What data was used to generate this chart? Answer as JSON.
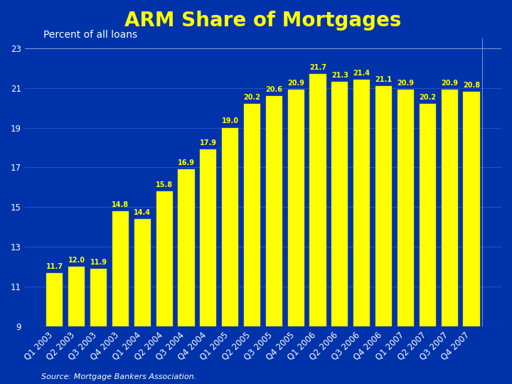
{
  "title": "ARM Share of Mortgages",
  "ylabel": "Percent of all loans",
  "source": "Source: Mortgage Bankers Association.",
  "categories": [
    "Q1 2003",
    "Q2 2003",
    "Q3 2003",
    "Q4 2003",
    "Q1 2004",
    "Q2 2004",
    "Q3 2004",
    "Q4 2004",
    "Q1 2005",
    "Q2 2005",
    "Q3 2005",
    "Q4 2005",
    "Q1 2006",
    "Q2 2006",
    "Q3 2006",
    "Q4 2006",
    "Q1 2007",
    "Q2 2007",
    "Q3 2007",
    "Q4 2007"
  ],
  "values": [
    11.7,
    12.0,
    11.9,
    14.8,
    14.4,
    15.8,
    16.9,
    17.9,
    19.0,
    20.2,
    20.6,
    20.9,
    21.7,
    21.3,
    21.4,
    21.1,
    20.9,
    20.2,
    20.9,
    20.8
  ],
  "bar_color": "#FFFF00",
  "bar_edge_color": "#CCCC00",
  "outer_bg_color": "#0033aa",
  "plot_bg_color": "#0033aa",
  "title_color": "#FFFF00",
  "ylabel_color": "#FFFFFF",
  "tick_color": "#FFFFFF",
  "label_color": "#FFFF00",
  "source_color": "#FFFFFF",
  "grid_color": "#3355cc",
  "ylim_min": 9,
  "ylim_max": 23,
  "yticks": [
    9,
    11,
    13,
    15,
    17,
    19,
    21,
    23
  ],
  "title_fontsize": 20,
  "ylabel_fontsize": 10,
  "bar_label_fontsize": 7,
  "tick_fontsize": 8.5,
  "source_fontsize": 8
}
